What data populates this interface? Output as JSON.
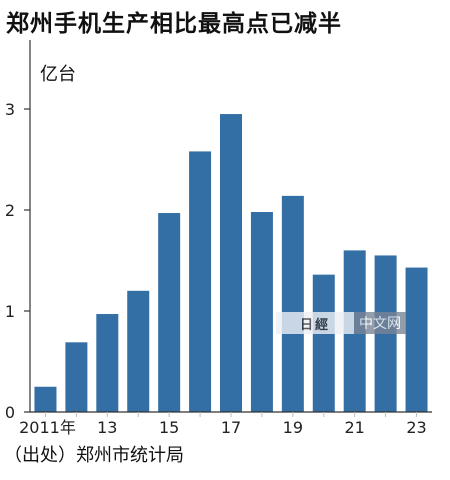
{
  "title": "郑州手机生产相比最高点已减半",
  "unit_label": "亿台",
  "source": "（出处）郑州市统计局",
  "watermark": {
    "text": "中文网"
  },
  "colors": {
    "bar": "#336fa5",
    "axis": "#333333",
    "tick": "#bdbdbd"
  },
  "chart_data": {
    "type": "bar",
    "categories": [
      "2011",
      "2012",
      "2013",
      "2014",
      "2015",
      "2016",
      "2017",
      "2018",
      "2019",
      "2020",
      "2021",
      "2022",
      "2023"
    ],
    "values": [
      0.25,
      0.69,
      0.97,
      1.2,
      1.97,
      2.58,
      2.95,
      1.98,
      2.14,
      1.36,
      1.6,
      1.55,
      1.43
    ],
    "x_tick_labels": [
      "2011年",
      "13",
      "15",
      "17",
      "19",
      "21",
      "23"
    ],
    "y_ticks": [
      "0",
      "1",
      "2",
      "3"
    ],
    "ylim": [
      0,
      3.6
    ],
    "ylabel": "亿台",
    "grid": false
  }
}
